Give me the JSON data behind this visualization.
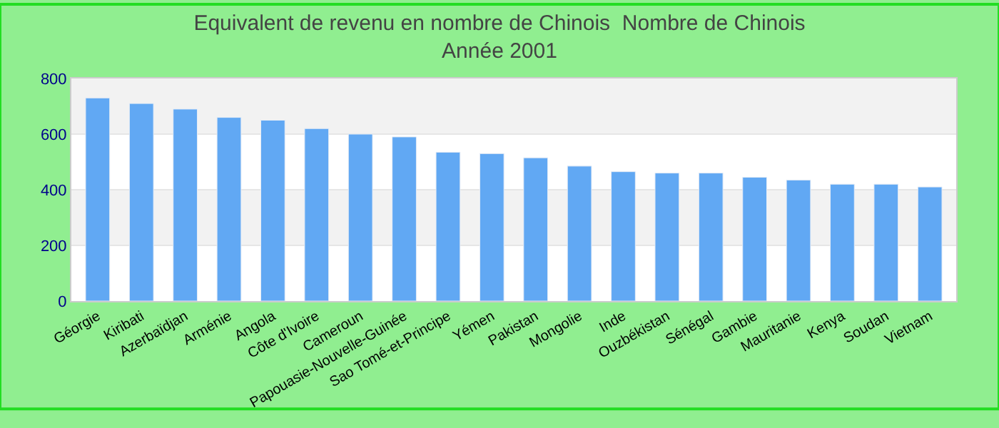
{
  "chart_data": {
    "type": "bar",
    "title": "Equivalent de revenu en nombre de Chinois  Nombre de Chinois",
    "subtitle": "Année 2001",
    "categories": [
      "Géorgie",
      "Kiribati",
      "Azerbaïdjan",
      "Arménie",
      "Angola",
      "Côte d'Ivoire",
      "Cameroun",
      "Papouasie-Nouvelle-Guinée",
      "Sao Tomé-et-Principe",
      "Yémen",
      "Pakistan",
      "Mongolie",
      "Inde",
      "Ouzbékistan",
      "Sénégal",
      "Gambie",
      "Mauritanie",
      "Kenya",
      "Soudan",
      "Vietnam"
    ],
    "values": [
      730,
      710,
      690,
      660,
      650,
      620,
      600,
      590,
      535,
      530,
      515,
      485,
      465,
      460,
      460,
      445,
      435,
      420,
      420,
      410
    ],
    "color": "#61a8f3",
    "ylim": [
      0,
      800
    ],
    "yticks": [
      0,
      200,
      400,
      600,
      800
    ],
    "grid": "y"
  }
}
